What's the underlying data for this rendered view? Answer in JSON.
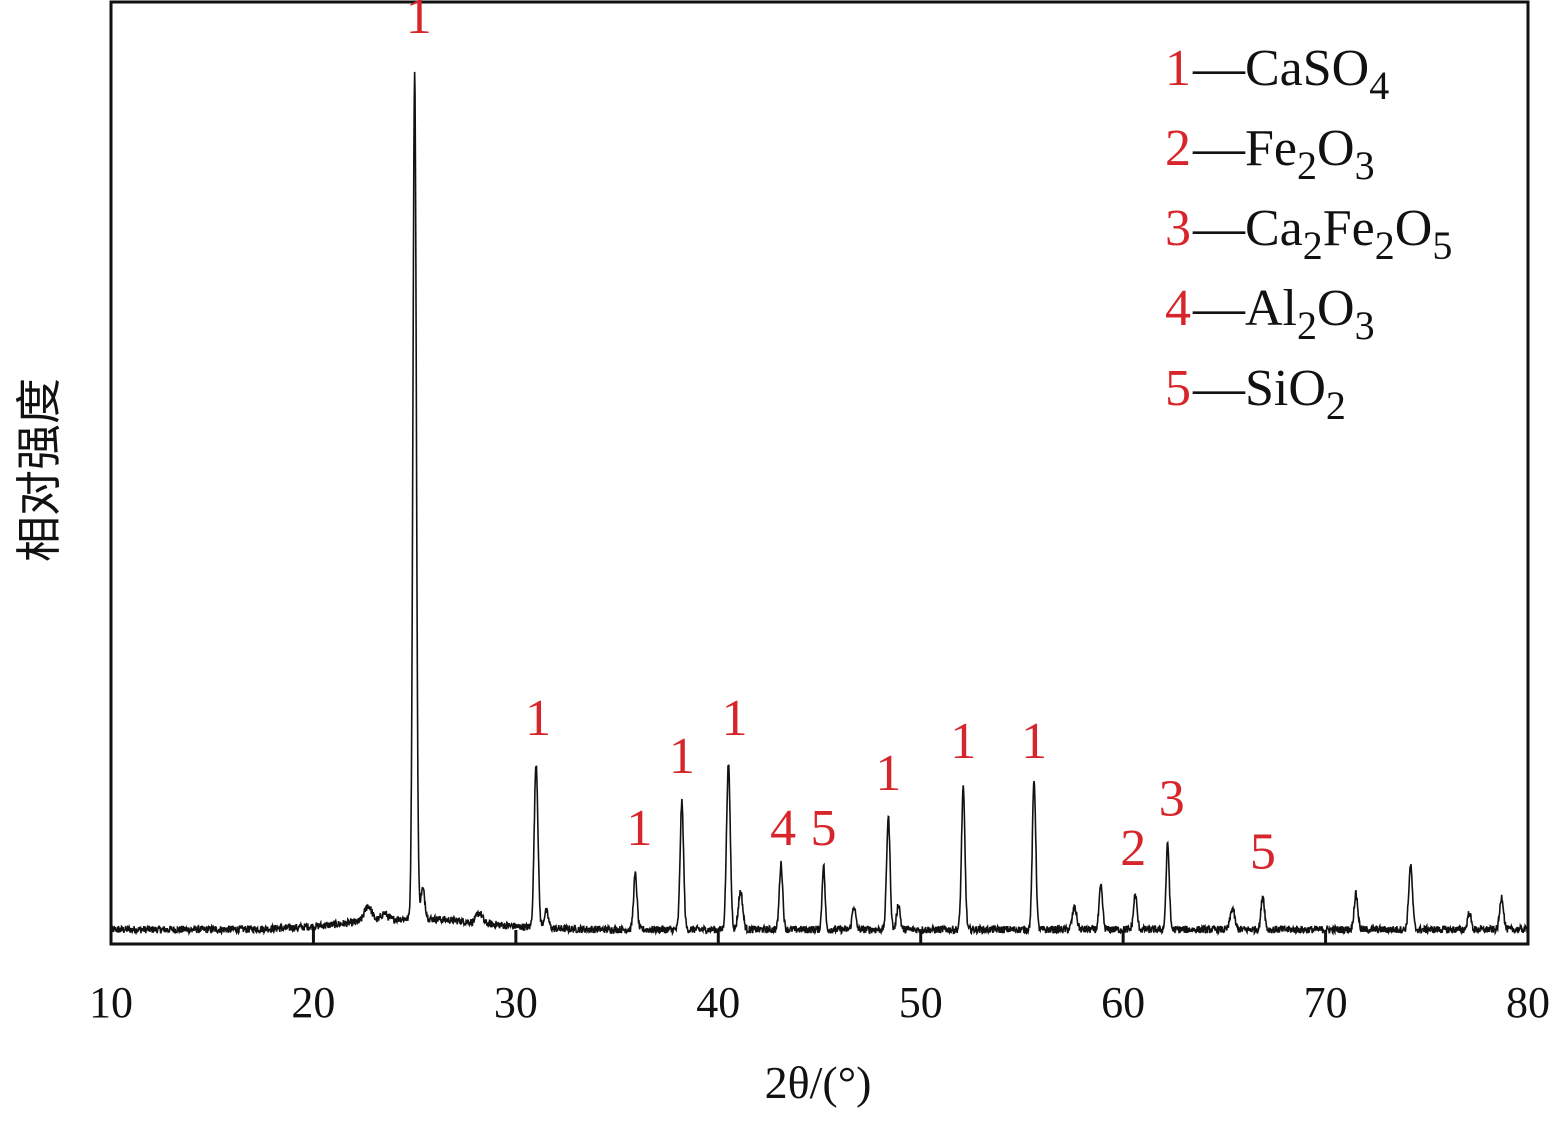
{
  "chart_data": {
    "type": "line",
    "xlabel": "2θ/(°)",
    "ylabel": "相对强度",
    "xlim": [
      10,
      80
    ],
    "ylim": [
      0,
      100
    ],
    "xticks": [
      10,
      20,
      30,
      40,
      50,
      60,
      70,
      80
    ],
    "grid": false,
    "legend_position": "top-right",
    "colors": {
      "line": "#111111",
      "annotation": "#d6262b",
      "frame": "#111111"
    },
    "baseline": {
      "x_start": 10,
      "x_end": 80,
      "base_y": 1.0
    },
    "peaks": [
      {
        "x": 22.7,
        "height": 1.8,
        "width": 0.25
      },
      {
        "x": 23.5,
        "height": 0.8,
        "width": 0.2
      },
      {
        "x": 25.0,
        "height": 100.0,
        "width": 0.12
      },
      {
        "x": 25.4,
        "height": 3.5,
        "width": 0.15
      },
      {
        "x": 28.2,
        "height": 1.2,
        "width": 0.2
      },
      {
        "x": 31.0,
        "height": 19.5,
        "width": 0.13
      },
      {
        "x": 31.5,
        "height": 2.0,
        "width": 0.15
      },
      {
        "x": 35.9,
        "height": 6.5,
        "width": 0.12
      },
      {
        "x": 38.2,
        "height": 15.0,
        "width": 0.12
      },
      {
        "x": 40.5,
        "height": 19.5,
        "width": 0.13
      },
      {
        "x": 41.1,
        "height": 4.5,
        "width": 0.15
      },
      {
        "x": 43.1,
        "height": 7.7,
        "width": 0.12
      },
      {
        "x": 45.2,
        "height": 7.6,
        "width": 0.1
      },
      {
        "x": 46.7,
        "height": 2.8,
        "width": 0.12
      },
      {
        "x": 48.4,
        "height": 13.3,
        "width": 0.12
      },
      {
        "x": 48.9,
        "height": 3.0,
        "width": 0.12
      },
      {
        "x": 52.1,
        "height": 16.6,
        "width": 0.12
      },
      {
        "x": 55.6,
        "height": 17.6,
        "width": 0.12
      },
      {
        "x": 57.6,
        "height": 2.6,
        "width": 0.15
      },
      {
        "x": 58.9,
        "height": 5.1,
        "width": 0.12
      },
      {
        "x": 60.6,
        "height": 4.1,
        "width": 0.12
      },
      {
        "x": 62.2,
        "height": 10.1,
        "width": 0.11
      },
      {
        "x": 65.4,
        "height": 2.5,
        "width": 0.15
      },
      {
        "x": 66.9,
        "height": 4.0,
        "width": 0.12
      },
      {
        "x": 71.5,
        "height": 4.2,
        "width": 0.13
      },
      {
        "x": 74.2,
        "height": 7.5,
        "width": 0.13
      },
      {
        "x": 77.1,
        "height": 2.0,
        "width": 0.12
      },
      {
        "x": 78.7,
        "height": 3.9,
        "width": 0.13
      }
    ],
    "peak_labels": [
      {
        "x": 25.2,
        "y": 107,
        "label": "1"
      },
      {
        "x": 31.1,
        "y": 24,
        "label": "1"
      },
      {
        "x": 36.1,
        "y": 11,
        "label": "1"
      },
      {
        "x": 38.2,
        "y": 19.5,
        "label": "1"
      },
      {
        "x": 40.8,
        "y": 24,
        "label": "1"
      },
      {
        "x": 43.2,
        "y": 11,
        "label": "4"
      },
      {
        "x": 45.2,
        "y": 11,
        "label": "5"
      },
      {
        "x": 48.4,
        "y": 17.5,
        "label": "1"
      },
      {
        "x": 52.1,
        "y": 21.3,
        "label": "1"
      },
      {
        "x": 55.6,
        "y": 21.3,
        "label": "1"
      },
      {
        "x": 60.5,
        "y": 8.6,
        "label": "2"
      },
      {
        "x": 62.4,
        "y": 14.5,
        "label": "3"
      },
      {
        "x": 66.9,
        "y": 8.2,
        "label": "5"
      }
    ]
  },
  "legend": {
    "items": [
      {
        "num": "1",
        "dash": "—",
        "parts": [
          [
            "CaSO",
            false
          ],
          [
            "4",
            true
          ]
        ]
      },
      {
        "num": "2",
        "dash": "—",
        "parts": [
          [
            "Fe",
            false
          ],
          [
            "2",
            true
          ],
          [
            "O",
            false
          ],
          [
            "3",
            true
          ]
        ]
      },
      {
        "num": "3",
        "dash": "—",
        "parts": [
          [
            "Ca",
            false
          ],
          [
            "2",
            true
          ],
          [
            "Fe",
            false
          ],
          [
            "2",
            true
          ],
          [
            "O",
            false
          ],
          [
            "5",
            true
          ]
        ]
      },
      {
        "num": "4",
        "dash": "—",
        "parts": [
          [
            "Al",
            false
          ],
          [
            "2",
            true
          ],
          [
            "O",
            false
          ],
          [
            "3",
            true
          ]
        ]
      },
      {
        "num": "5",
        "dash": "—",
        "parts": [
          [
            "SiO",
            false
          ],
          [
            "2",
            true
          ]
        ]
      }
    ]
  }
}
